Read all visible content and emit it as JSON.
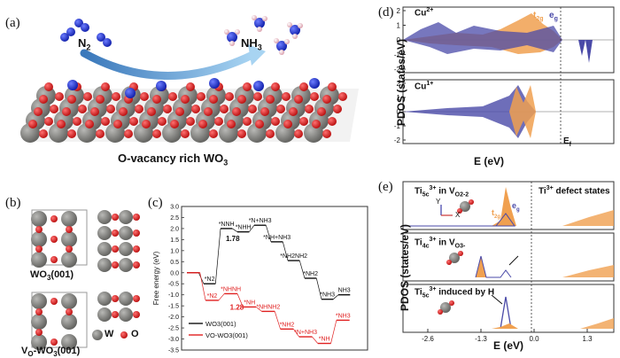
{
  "panel_a": {
    "letter": "(a)",
    "reactant": "N",
    "reactant_sub": "2",
    "product": "NH",
    "product_sub": "3",
    "caption_main": "O-vacancy rich WO",
    "caption_sub": "3",
    "colors": {
      "W": "#7b7b78",
      "O": "#e01818",
      "N": "#1b2fd0",
      "H": "#f2c6cf",
      "arrow": "#4a8fcf"
    }
  },
  "panel_b": {
    "letter": "(b)",
    "label_top": "WO",
    "label_top_sub": "3",
    "label_top_suffix": "(001)",
    "label_bottom_v": "V",
    "label_bottom_vsub": "O",
    "label_bottom_rest": "-WO",
    "label_bottom_sub": "3",
    "label_bottom_suffix": "(001)",
    "legend_W": "W",
    "legend_O": "O"
  },
  "panel_c": {
    "letter": "(c)",
    "chart_data": {
      "type": "line",
      "ylabel": "Free energy (eV)",
      "ylim": [
        -3.5,
        3.0
      ],
      "yticks": [
        "3.0",
        "2.5",
        "2.0",
        "1.5",
        "1.0",
        "0.5",
        "0.0",
        "-0.5",
        "-1.0",
        "-1.5",
        "-2.0",
        "-2.5",
        "-3.0",
        "-3.5"
      ],
      "series": [
        {
          "name": "WO3(001)",
          "color": "#111111",
          "levels": [
            0.0,
            -0.5,
            2.0,
            1.85,
            2.15,
            1.4,
            0.55,
            -0.25,
            -1.2,
            -1.0
          ],
          "labels": [
            "",
            "*N2",
            "*NNH",
            "*NHH",
            "*N+NH3",
            "*NH+NH3",
            "*NH2NH2",
            "*NH2",
            "*NH3",
            "NH3"
          ],
          "barrier": "1.78"
        },
        {
          "name": "VO-WO3(001)",
          "color": "#e02020",
          "levels": [
            0.0,
            -1.25,
            -0.95,
            -1.55,
            -1.75,
            -2.55,
            -2.9,
            -3.2,
            -2.15
          ],
          "labels": [
            "",
            "*N2",
            "*NHNH",
            "*NH",
            "*NHNH2",
            "*NH2",
            "*N+NH3",
            "*NH",
            "*NH3"
          ],
          "barrier": "1.28"
        }
      ],
      "legend": [
        "WO3(001)",
        "VO-WO3(001)"
      ]
    }
  },
  "panel_d": {
    "letter": "(d)",
    "top_label": "Cu",
    "top_label_sup": "2+",
    "bottom_label": "Cu",
    "bottom_label_sup": "1+",
    "t2g": "t",
    "t2g_sub": "2g",
    "eg": "e",
    "eg_sub": "g",
    "ylabel": "PDOS (states/eV)",
    "xlabel": "E (eV)",
    "fermi_label": "E",
    "fermi_sub": "f",
    "top_yticks": [
      "2",
      "1",
      "0",
      "-1",
      "-2"
    ],
    "bottom_yticks": [
      "2",
      "1",
      "0",
      "-1",
      "-2"
    ],
    "colors": {
      "t2g": "#f0a050",
      "eg": "#4a4aa8"
    }
  },
  "panel_e": {
    "letter": "(e)",
    "ylabel": "PDOS (states/eV)",
    "xlabel": "E (eV)",
    "xticks": [
      "-2.6",
      "-1.3",
      "0.0",
      "1.3"
    ],
    "sub1_label": "Ti",
    "sub1_sub": "5c",
    "sub1_sup": "3+",
    "sub1_tail": " in V",
    "sub1_tail_sub": "O2-2",
    "sub1_defect": "Ti",
    "sub1_defect_sup": "3+",
    "sub1_defect_tail": " defect states",
    "sub2_label": "Ti",
    "sub2_sub": "4c",
    "sub2_sup": "3+",
    "sub2_tail": " in V",
    "sub2_tail_sub": "O3-",
    "sub3_label": "Ti",
    "sub3_sub": "5c",
    "sub3_sup": "3+",
    "sub3_tail": " induced by H",
    "axis_x": "X",
    "axis_y": "Y",
    "t2g": "t",
    "t2g_sub": "2g",
    "eg": "e",
    "eg_sub": "g"
  }
}
